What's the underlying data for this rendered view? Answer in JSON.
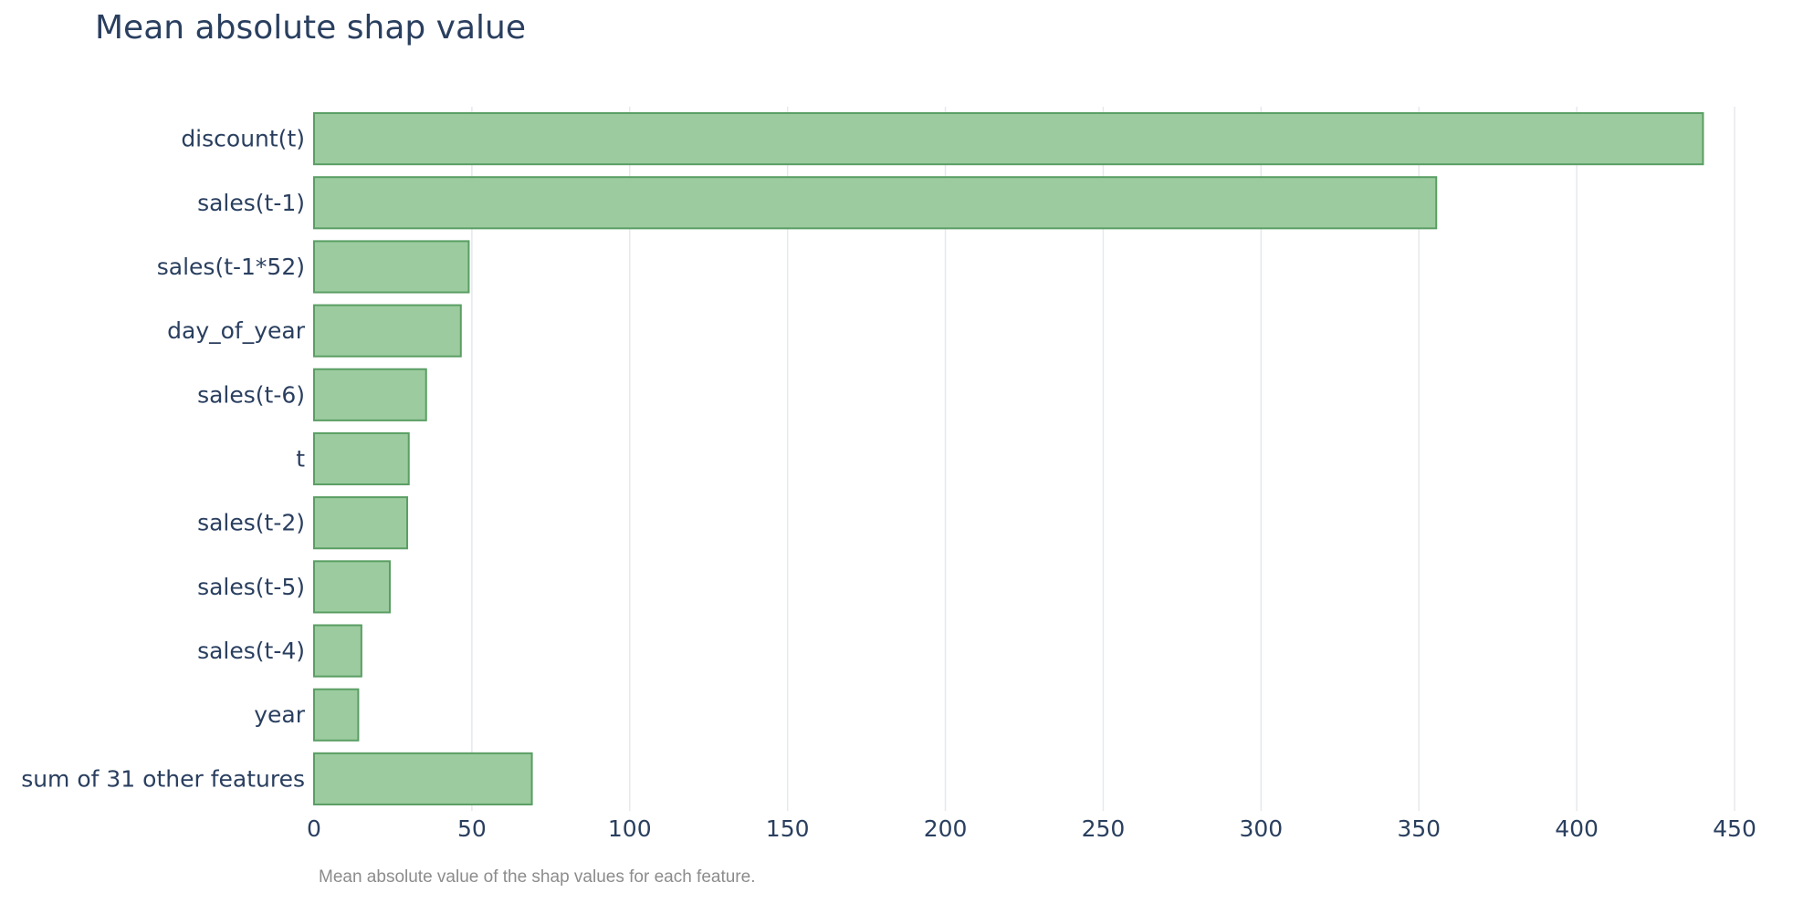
{
  "chart_data": {
    "type": "bar",
    "orientation": "horizontal",
    "title": "Mean absolute shap value",
    "note": "Mean absolute value of the shap values for each feature.",
    "xlabel": "",
    "ylabel": "",
    "xlim": [
      0,
      450
    ],
    "x_ticks": [
      0,
      50,
      100,
      150,
      200,
      250,
      300,
      350,
      400,
      450
    ],
    "grid": true,
    "categories": [
      "discount(t)",
      "sales(t-1)",
      "sales(t-1*52)",
      "day_of_year",
      "sales(t-6)",
      "t",
      "sales(t-2)",
      "sales(t-5)",
      "sales(t-4)",
      "year",
      "sum of 31 other features"
    ],
    "values": [
      440,
      355.5,
      49,
      46.5,
      35.5,
      30,
      29.5,
      24,
      15,
      14,
      69
    ],
    "bar_color": "#9ccb9f",
    "bar_edge_color": "#5a9e64",
    "grid_color": "#e5e9ee",
    "text_color": "#2a3f5f"
  }
}
